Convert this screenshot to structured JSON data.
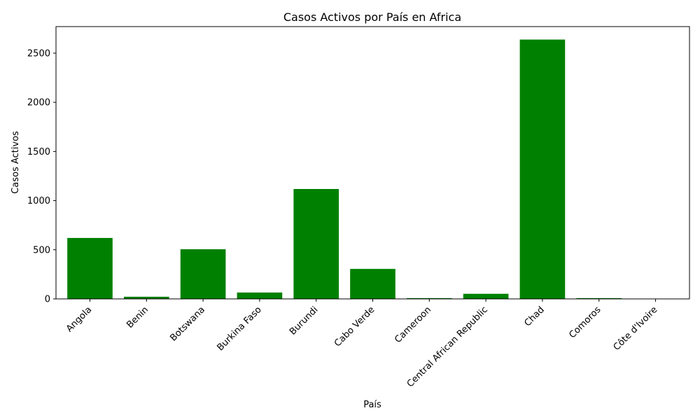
{
  "chart_data": {
    "type": "bar",
    "title": "Casos Activos por País en Africa",
    "xlabel": "País",
    "ylabel": "Casos Activos",
    "categories": [
      "Angola",
      "Benin",
      "Botswana",
      "Burkina Faso",
      "Burundi",
      "Cabo Verde",
      "Cameroon",
      "Central African Republic",
      "Chad",
      "Comoros",
      "Côte d'Ivoire"
    ],
    "values": [
      620,
      22,
      505,
      65,
      1118,
      305,
      8,
      52,
      2638,
      8,
      0
    ],
    "ylim": [
      0,
      2770
    ],
    "yticks": [
      0,
      500,
      1000,
      1500,
      2000,
      2500
    ],
    "bar_color": "#008000",
    "grid": false,
    "legend": "none"
  }
}
